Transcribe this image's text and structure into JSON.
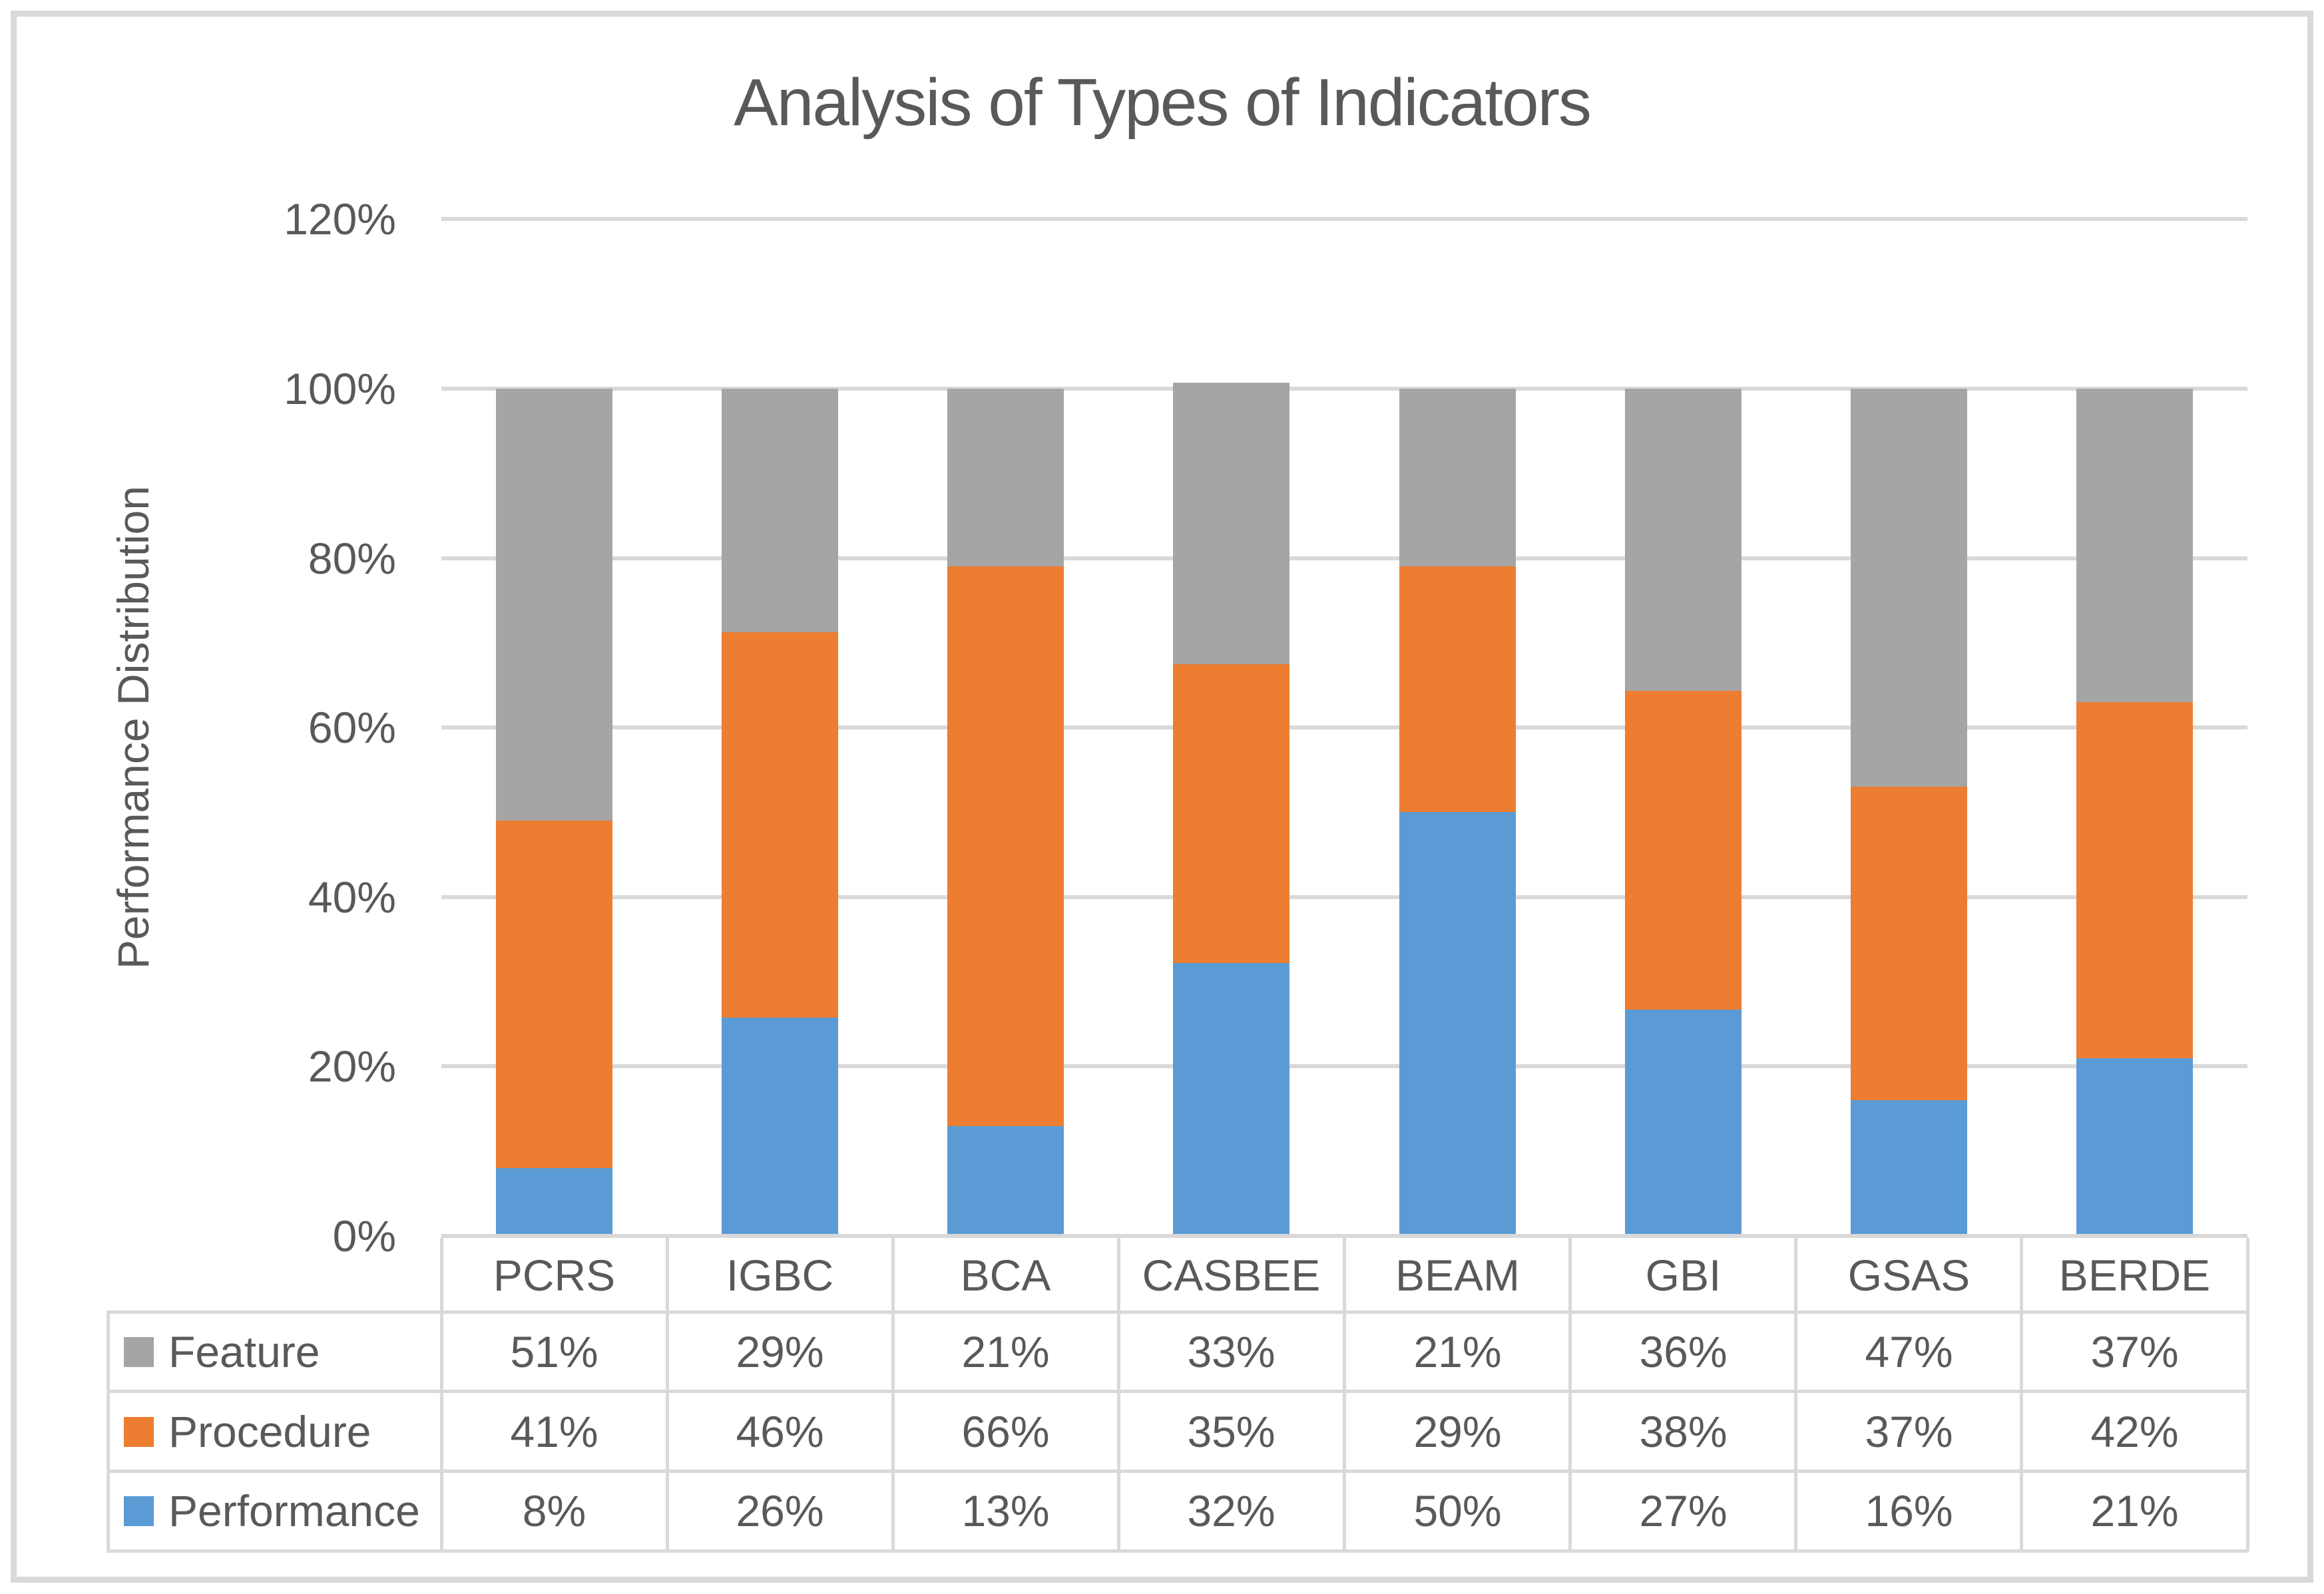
{
  "chart_data": {
    "type": "bar",
    "stacked": true,
    "title": "Analysis of Types of Indicators",
    "ylabel": "Performance Distribution",
    "xlabel": "",
    "categories": [
      "PCRS",
      "IGBC",
      "BCA",
      "CASBEE",
      "BEAM",
      "GBI",
      "GSAS",
      "BERDE"
    ],
    "series": [
      {
        "name": "Performance",
        "color": "#5B9BD5",
        "values": [
          8,
          26,
          13,
          32,
          50,
          27,
          16,
          21
        ]
      },
      {
        "name": "Procedure",
        "color": "#ED7D31",
        "values": [
          41,
          46,
          66,
          35,
          29,
          38,
          37,
          42
        ]
      },
      {
        "name": "Feature",
        "color": "#A5A5A5",
        "values": [
          51,
          29,
          21,
          33,
          21,
          36,
          47,
          37
        ]
      }
    ],
    "stack_order_bottom_to_top": [
      "Performance",
      "Procedure",
      "Feature"
    ],
    "observed_bar_top_pct": [
      100,
      100,
      100,
      100.7,
      100,
      100,
      100,
      100
    ],
    "ylim": [
      0,
      120
    ],
    "ytick_step": 20,
    "yticks": [
      "0%",
      "20%",
      "40%",
      "60%",
      "80%",
      "100%",
      "120%"
    ],
    "grid": true,
    "legend_position": "data-table-left"
  },
  "table": {
    "rows": [
      {
        "name": "Feature",
        "swatch_color": "#A5A5A5",
        "cells": [
          "51%",
          "29%",
          "21%",
          "33%",
          "21%",
          "36%",
          "47%",
          "37%"
        ]
      },
      {
        "name": "Procedure",
        "swatch_color": "#ED7D31",
        "cells": [
          "41%",
          "46%",
          "66%",
          "35%",
          "29%",
          "38%",
          "37%",
          "42%"
        ]
      },
      {
        "name": "Performance",
        "swatch_color": "#5B9BD5",
        "cells": [
          "8%",
          "26%",
          "13%",
          "32%",
          "50%",
          "27%",
          "16%",
          "21%"
        ]
      }
    ]
  },
  "colors": {
    "grid": "#D9D9D9",
    "border": "#D9D9D9",
    "text": "#595959",
    "background": "#FFFFFF"
  }
}
